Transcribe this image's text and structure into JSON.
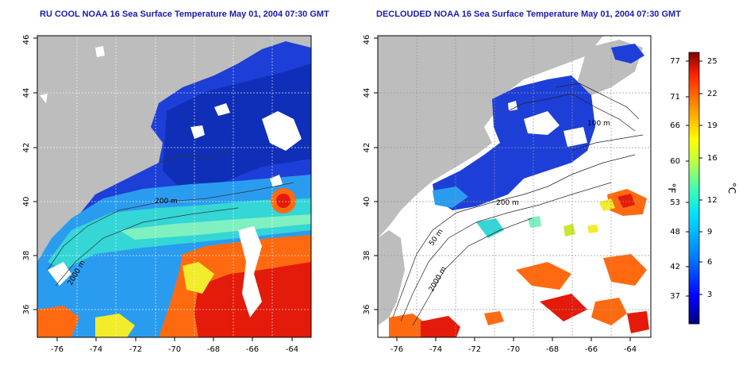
{
  "left_panel": {
    "title": "RU COOL NOAA 16 Sea Surface Temperature May 01, 2004 07:30 GMT",
    "contour_labels": [
      "200 m",
      "2000 m"
    ]
  },
  "right_panel": {
    "title": "DECLOUDED NOAA 16 Sea Surface Temperature May 01, 2004 07:30 GMT",
    "contour_labels": [
      "100 m",
      "200 m",
      "50 m",
      "2000 m"
    ]
  },
  "axes": {
    "lat_ticks": [
      "36",
      "38",
      "40",
      "42",
      "44",
      "46"
    ],
    "lon_ticks": [
      "-76",
      "-74",
      "-72",
      "-70",
      "-68",
      "-66",
      "-64"
    ]
  },
  "colorbar": {
    "fahrenheit_label": "°F",
    "celsius_label": "°C",
    "fahrenheit_ticks": [
      "77",
      "71",
      "66",
      "60",
      "53",
      "48",
      "42",
      "37"
    ],
    "celsius_ticks": [
      "25",
      "22",
      "19",
      "16",
      "12",
      "9",
      "6",
      "3"
    ],
    "colors": [
      "#000080",
      "#0000ff",
      "#0080ff",
      "#00e0ff",
      "#40ffb0",
      "#c0ff40",
      "#ffff00",
      "#ff9000",
      "#ff2000",
      "#800000"
    ]
  },
  "map_colors": {
    "land": "#bdbdbd",
    "cloud": "#ffffff",
    "cold": "#1d3fd8",
    "cool": "#2a9cf0",
    "mid": "#34d6d6",
    "warm": "#f2ec2a",
    "hot": "#ff6a10",
    "vhot": "#e41a0a"
  }
}
